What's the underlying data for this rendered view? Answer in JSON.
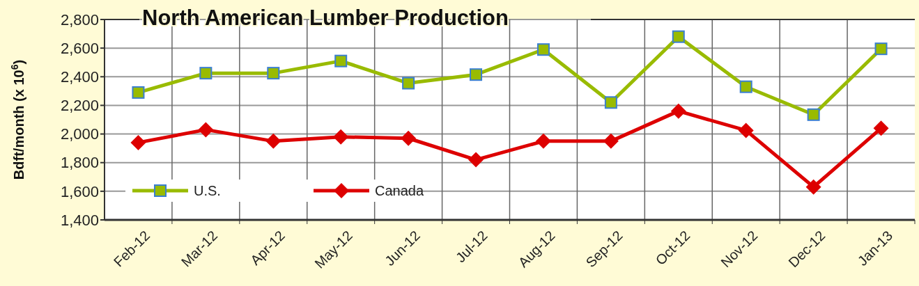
{
  "chart_data": {
    "type": "line",
    "title": "North American Lumber Production",
    "ylabel": "Bdft/month (x 10$^{6}$)",
    "categories": [
      "Feb-12",
      "Mar-12",
      "Apr-12",
      "May-12",
      "Jun-12",
      "Jul-12",
      "Aug-12",
      "Sep-12",
      "Oct-12",
      "Nov-12",
      "Dec-12",
      "Jan-13"
    ],
    "series": [
      {
        "name": "U.S.",
        "color": "#99bb00",
        "marker": "square",
        "values": [
          2290,
          2425,
          2425,
          2510,
          2355,
          2415,
          2590,
          2220,
          2680,
          2330,
          2135,
          2595
        ]
      },
      {
        "name": "Canada",
        "color": "#dd0000",
        "marker": "diamond",
        "values": [
          1940,
          2030,
          1950,
          1980,
          1970,
          1820,
          1950,
          1950,
          2160,
          2025,
          1630,
          2040
        ]
      }
    ],
    "ylim": [
      1400,
      2800
    ],
    "yticks": [
      {
        "value": 1400,
        "label": "1,400"
      },
      {
        "value": 1600,
        "label": "1,600"
      },
      {
        "value": 1800,
        "label": "1,800"
      },
      {
        "value": 2000,
        "label": "2,000"
      },
      {
        "value": 2200,
        "label": "2,200"
      },
      {
        "value": 2400,
        "label": "2,400"
      },
      {
        "value": 2600,
        "label": "2,600"
      },
      {
        "value": 2800,
        "label": "2,800"
      }
    ],
    "grid": true,
    "legend": "bottom left",
    "line_style": "solid"
  }
}
